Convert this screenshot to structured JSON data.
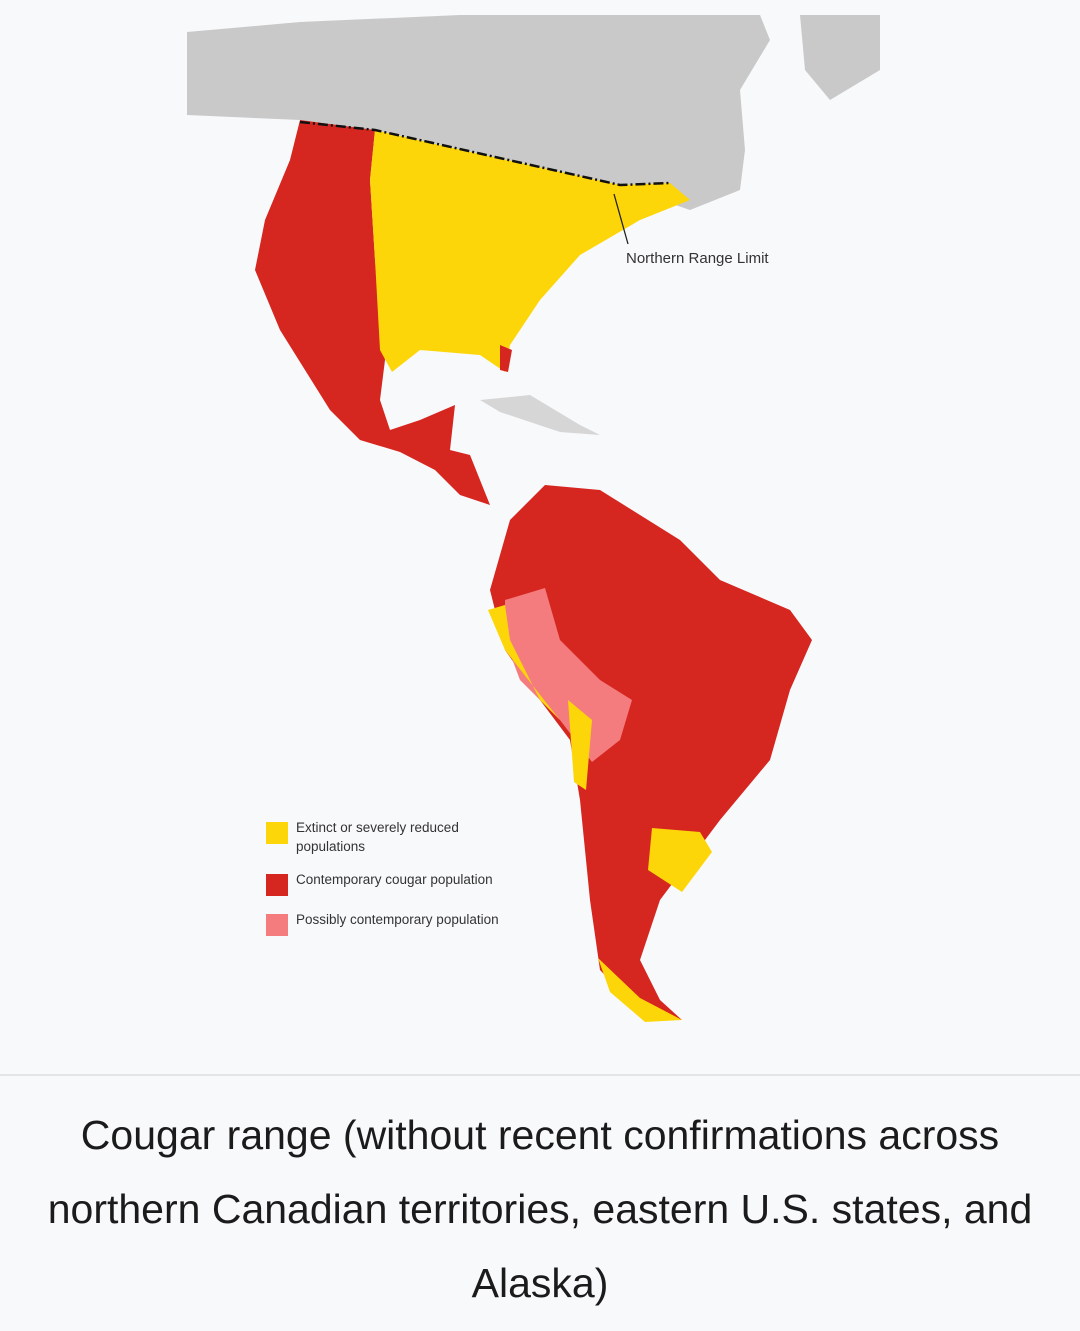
{
  "map": {
    "annotation": "Northern Range Limit",
    "legend": [
      {
        "label": "Extinct or severely reduced populations",
        "color": "#fdd60a"
      },
      {
        "label": "Contemporary cougar population",
        "color": "#d62620"
      },
      {
        "label": "Possibly contemporary population",
        "color": "#f47c7e"
      }
    ]
  },
  "caption": "Cougar range (without recent confirmations across northern Canadian territories, eastern U.S. states, and Alaska)"
}
